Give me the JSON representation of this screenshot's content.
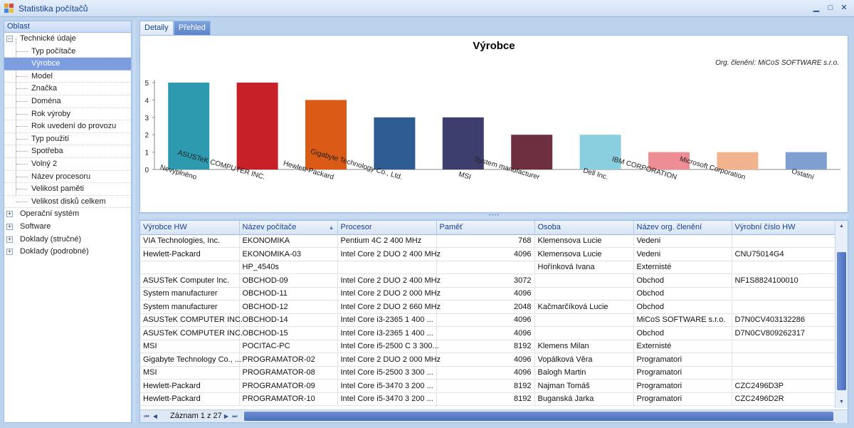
{
  "window": {
    "title": "Statistika počítačů"
  },
  "left_panel": {
    "header": "Oblast",
    "tree": [
      {
        "label": "Technické údaje",
        "level": 0,
        "expander": "−"
      },
      {
        "label": "Typ počítače",
        "level": 1
      },
      {
        "label": "Výrobce",
        "level": 1,
        "selected": true
      },
      {
        "label": "Model",
        "level": 1
      },
      {
        "label": "Značka",
        "level": 1
      },
      {
        "label": "Doména",
        "level": 1
      },
      {
        "label": "Rok výroby",
        "level": 1
      },
      {
        "label": "Rok uvedení do provozu",
        "level": 1
      },
      {
        "label": "Typ použití",
        "level": 1
      },
      {
        "label": "Spotřeba",
        "level": 1
      },
      {
        "label": "Volný 2",
        "level": 1
      },
      {
        "label": "Název procesoru",
        "level": 1
      },
      {
        "label": "Velikost paměti",
        "level": 1
      },
      {
        "label": "Velikost disků celkem",
        "level": 1
      },
      {
        "label": "Operační systém",
        "level": 0,
        "expander": "+"
      },
      {
        "label": "Software",
        "level": 0,
        "expander": "+"
      },
      {
        "label": "Doklady (stručné)",
        "level": 0,
        "expander": "+"
      },
      {
        "label": "Doklady (podrobné)",
        "level": 0,
        "expander": "+"
      }
    ]
  },
  "tabs": [
    {
      "label": "Detaily",
      "active": false
    },
    {
      "label": "Přehled",
      "active": true
    }
  ],
  "chart_data": {
    "type": "bar",
    "title": "Výrobce",
    "subtitle": "Org. členění: MiCoS SOFTWARE s.r.o.",
    "categories": [
      "Nevyplněno",
      "ASUSTeK COMPUTER INC.",
      "Hewlett-Packard",
      "Gigabyte Technology Co., Ltd.",
      "MSI",
      "System manufacturer",
      "Dell Inc.",
      "IBM CORPORATION",
      "Microsoft Corporation",
      "Ostatní"
    ],
    "values": [
      5,
      5,
      4,
      3,
      3,
      2,
      2,
      1,
      1,
      1
    ],
    "colors": [
      "#2e9ab0",
      "#c82028",
      "#da5a16",
      "#2f5c93",
      "#3d3d6e",
      "#6e2f40",
      "#8acfe0",
      "#ef8d94",
      "#f2b48e",
      "#7f9fd1"
    ],
    "ylim": [
      0,
      5
    ],
    "yticks": [
      0,
      1,
      2,
      3,
      4,
      5
    ],
    "grid": false,
    "legend": "none"
  },
  "grid": {
    "columns": [
      "Výrobce HW",
      "Název počítače",
      "Procesor",
      "Paměť",
      "Osoba",
      "Název org. členění",
      "Výrobní číslo HW"
    ],
    "sort_column": 1,
    "rows": [
      [
        "VIA Technologies, Inc.",
        "EKONOMIKA",
        "Pentium 4C  2 400 MHz",
        "768",
        "Klemensova Lucie",
        "Vedeni",
        ""
      ],
      [
        "Hewlett-Packard",
        "EKONOMIKA-03",
        "Intel Core 2 DUO  2 400 MHz",
        "4096",
        "Klemensova Lucie",
        "Vedeni",
        "CNU75014G4"
      ],
      [
        "",
        "HP_4540s",
        "",
        "",
        "Hořínková Ivana",
        "Externisté",
        ""
      ],
      [
        "ASUSTeK Computer Inc.",
        "OBCHOD-09",
        "Intel Core 2 DUO  2 400 MHz",
        "3072",
        "",
        "Obchod",
        "NF1S8824100010"
      ],
      [
        "System manufacturer",
        "OBCHOD-11",
        "Intel Core 2 DUO  2 000 MHz",
        "4096",
        "",
        "Obchod",
        ""
      ],
      [
        "System manufacturer",
        "OBCHOD-12",
        "Intel Core 2 DUO  2 660 MHz",
        "2048",
        "Kačmarčíková Lucie",
        "Obchod",
        ""
      ],
      [
        "ASUSTeK COMPUTER INC.",
        "OBCHOD-14",
        "Intel Core i3-2365  1 400 ...",
        "4096",
        "",
        "MiCoS SOFTWARE s.r.o.",
        "D7N0CV403132286"
      ],
      [
        "ASUSTeK COMPUTER INC.",
        "OBCHOD-15",
        "Intel Core i3-2365  1 400 ...",
        "4096",
        "",
        "Obchod",
        "D7N0CV809262317"
      ],
      [
        "MSI",
        "POCITAC-PC",
        "Intel Core i5-2500 C  3 300...",
        "8192",
        "Klemens Milan",
        "Externisté",
        ""
      ],
      [
        "Gigabyte Technology Co., ...",
        "PROGRAMATOR-02",
        "Intel Core 2 DUO  2 000 MHz",
        "4096",
        "Vopálková Věra",
        "Programatori",
        ""
      ],
      [
        "MSI",
        "PROGRAMATOR-08",
        "Intel Core i5-2500  3 300 ...",
        "4096",
        "Balogh Martin",
        "Programatori",
        ""
      ],
      [
        "Hewlett-Packard",
        "PROGRAMATOR-09",
        "Intel Core i5-3470  3 200 ...",
        "8192",
        "Najman Tomáš",
        "Programatori",
        "CZC2496D3P"
      ],
      [
        "Hewlett-Packard",
        "PROGRAMATOR-10",
        "Intel Core i5-3470  3 200 ...",
        "8192",
        "Buganská Jarka",
        "Programatori",
        "CZC2496D2R"
      ]
    ],
    "footer": {
      "record_text": "Záznam 1 z 27"
    }
  },
  "icons": {
    "minimize": "minimize-icon",
    "maximize": "maximize-icon",
    "close": "close-icon"
  }
}
